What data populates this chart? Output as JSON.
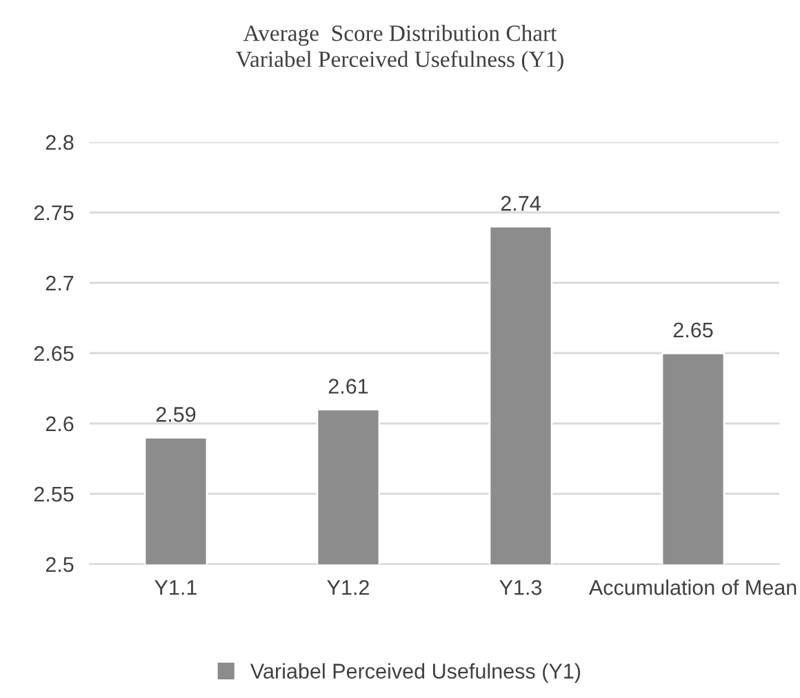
{
  "chart_data": {
    "type": "bar",
    "title": "Average  Score Distribution Chart\nVariabel Perceived Usefulness (Y1)",
    "categories": [
      "Y1.1",
      "Y1.2",
      "Y1.3",
      "Accumulation of Mean"
    ],
    "series": [
      {
        "name": "Variabel Perceived Usefulness (Y1)",
        "color": "#8c8c8c",
        "values": [
          2.59,
          2.61,
          2.74,
          2.65
        ]
      }
    ],
    "ylim": [
      2.5,
      2.8
    ],
    "yticks": [
      2.5,
      2.55,
      2.6,
      2.65,
      2.7,
      2.75,
      2.8
    ],
    "grid": "y",
    "legend": "bottom",
    "data_labels": true
  }
}
